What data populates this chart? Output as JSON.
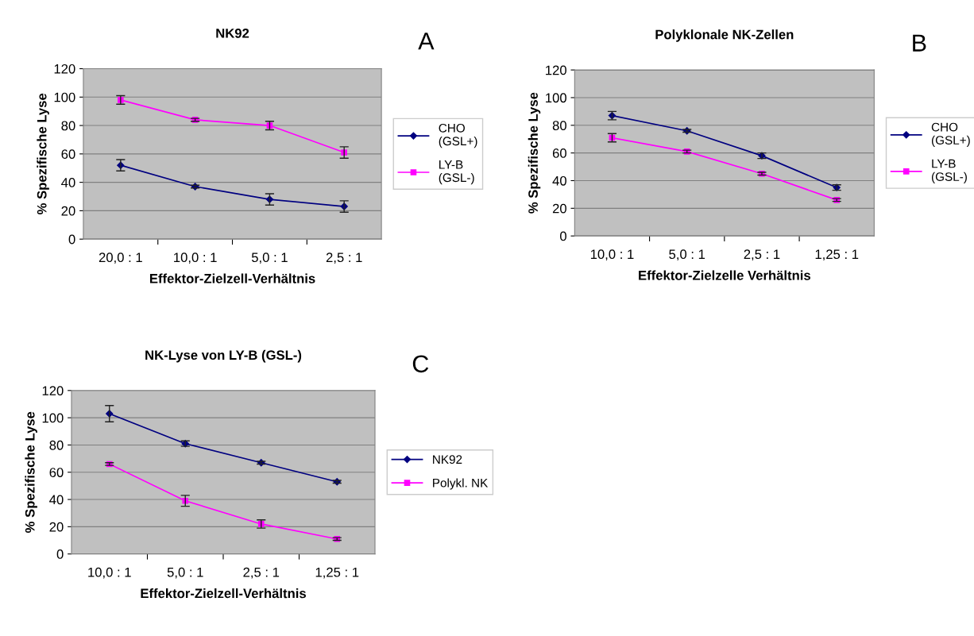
{
  "chart_data": [
    {
      "type": "line",
      "title": "NK92",
      "annotations": [
        "A"
      ],
      "xlabel": "Effektor-Zielzell-Verhältnis",
      "ylabel": "% Spezifische Lyse",
      "categories": [
        "20,0 : 1",
        "10,0 : 1",
        "5,0 : 1",
        "2,5 : 1"
      ],
      "ylim": [
        0,
        120
      ],
      "yticks": [
        0,
        20,
        40,
        60,
        80,
        100,
        120
      ],
      "grid": "y",
      "legend": "right",
      "series": [
        {
          "name": "CHO\n(GSL+)",
          "color": "#000080",
          "marker": "diamond",
          "values": [
            52,
            37,
            28,
            23
          ],
          "errors": [
            4,
            1,
            4,
            4
          ]
        },
        {
          "name": "LY-B\n(GSL-)",
          "color": "#ff00ff",
          "marker": "square",
          "values": [
            98,
            84,
            80,
            61
          ],
          "errors": [
            3,
            1,
            3,
            4
          ]
        }
      ]
    },
    {
      "type": "line",
      "title": "Polyklonale NK-Zellen",
      "annotations": [
        "B"
      ],
      "xlabel": "Effektor-Zielzelle Verhältnis",
      "ylabel": "% Spezifische Lyse",
      "categories": [
        "10,0 : 1",
        "5,0 : 1",
        "2,5 : 1",
        "1,25 : 1"
      ],
      "ylim": [
        0,
        120
      ],
      "yticks": [
        0,
        20,
        40,
        60,
        80,
        100,
        120
      ],
      "grid": "y",
      "legend": "right",
      "series": [
        {
          "name": "CHO\n(GSL+)",
          "color": "#000080",
          "marker": "diamond",
          "values": [
            87,
            76,
            58,
            35
          ],
          "errors": [
            3,
            1,
            2,
            2
          ]
        },
        {
          "name": "LY-B\n(GSL-)",
          "color": "#ff00ff",
          "marker": "square",
          "values": [
            71,
            61,
            45,
            26
          ],
          "errors": [
            3,
            1,
            1,
            1
          ]
        }
      ]
    },
    {
      "type": "line",
      "title": "NK-Lyse von LY-B (GSL-)",
      "annotations": [
        "C"
      ],
      "xlabel": "Effektor-Zielzell-Verhältnis",
      "ylabel": "% Spezifische Lyse",
      "categories": [
        "10,0 : 1",
        "5,0 : 1",
        "2,5 : 1",
        "1,25 : 1"
      ],
      "ylim": [
        0,
        120
      ],
      "yticks": [
        0,
        20,
        40,
        60,
        80,
        100,
        120
      ],
      "grid": "y",
      "legend": "right",
      "series": [
        {
          "name": "NK92",
          "color": "#000080",
          "marker": "diamond",
          "values": [
            103,
            81,
            67,
            53
          ],
          "errors": [
            6,
            2,
            1,
            1
          ]
        },
        {
          "name": "Polykl. NK",
          "color": "#ff00ff",
          "marker": "square",
          "values": [
            66,
            39,
            22,
            11
          ],
          "errors": [
            1,
            4,
            3,
            1
          ]
        }
      ]
    }
  ]
}
